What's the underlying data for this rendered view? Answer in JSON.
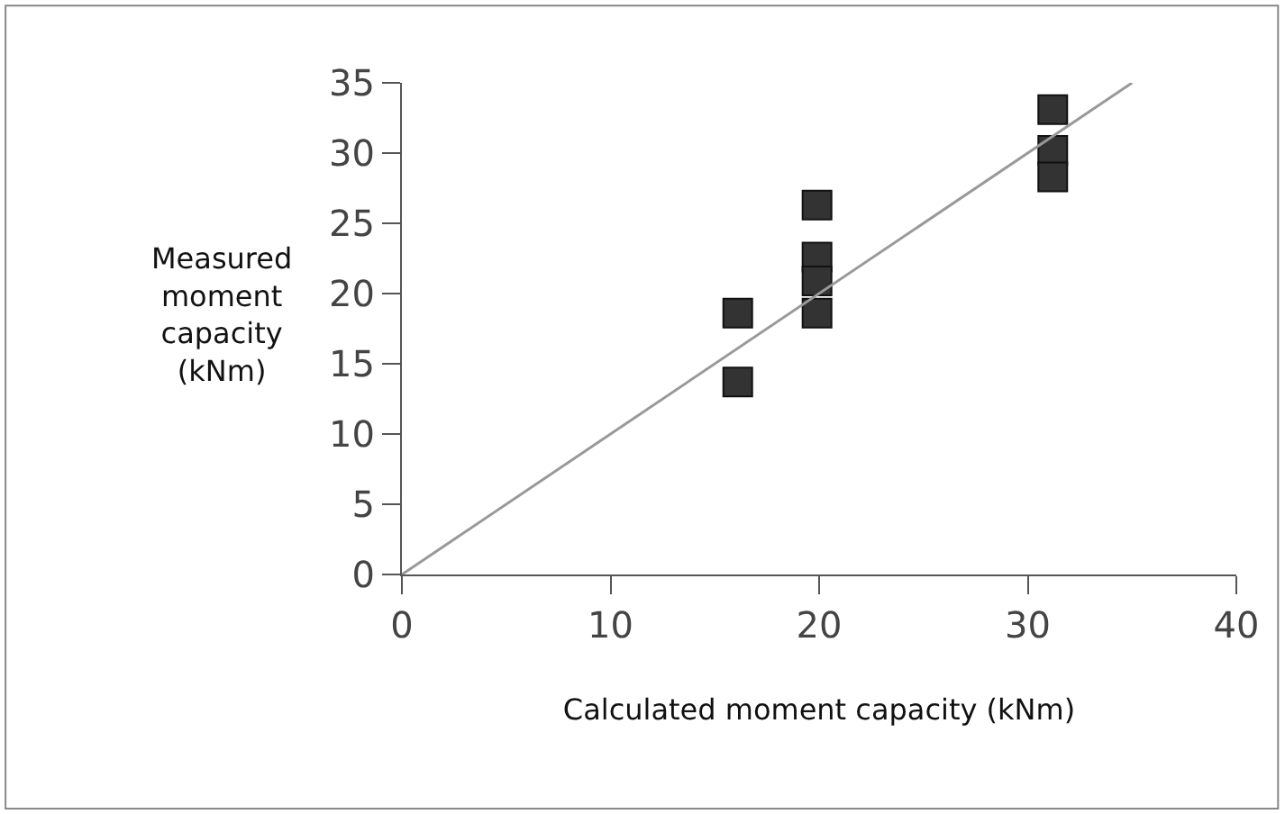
{
  "chart_data": {
    "type": "scatter",
    "xlabel": "Calculated moment capacity (kNm)",
    "ylabel": "Measured\nmoment\ncapacity\n(kNm)",
    "series": [
      {
        "color": "#333333",
        "marker": "square",
        "x": [
          16.1,
          16.1,
          19.9,
          19.9,
          19.9,
          19.9,
          31.2,
          31.2,
          31.2
        ],
        "values": [
          18.6,
          13.7,
          26.3,
          22.6,
          20.9,
          18.6,
          33.1,
          30.2,
          28.3
        ]
      },
      {
        "type": "line",
        "color": "#999999",
        "x": [
          0,
          35
        ],
        "values": [
          0,
          35
        ]
      }
    ],
    "xlim": [
      0,
      40
    ],
    "ylim": [
      0,
      35
    ],
    "xticks": [
      0,
      10,
      20,
      30,
      40
    ],
    "yticks": [
      0,
      5,
      10,
      15,
      20,
      25,
      30,
      35
    ],
    "legend": false
  }
}
